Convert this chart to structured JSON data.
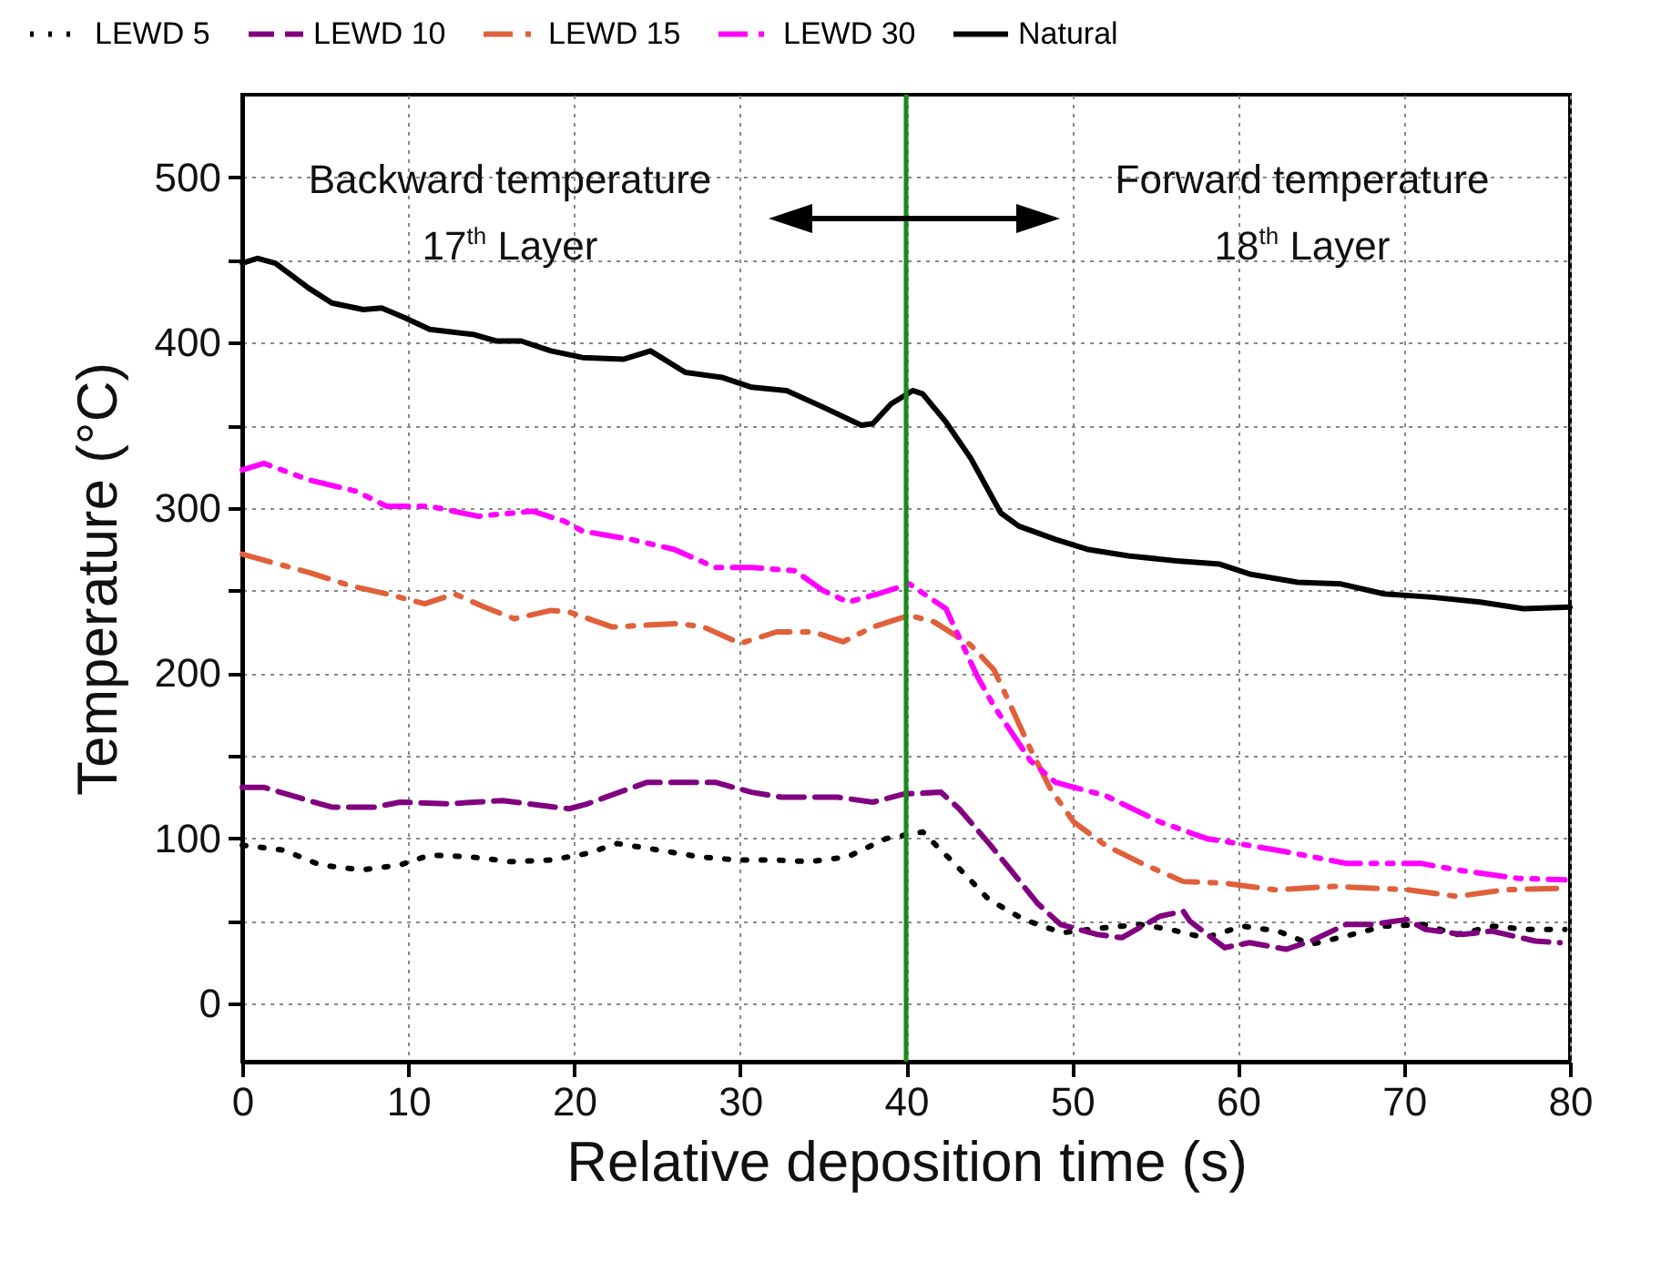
{
  "chart_data": {
    "type": "line",
    "xlabel": "Relative deposition time (s)",
    "ylabel": "Temperature (°C)",
    "annotations": [
      "Backward temperature",
      "17$^{th}$ Layer",
      "Forward temperature",
      "18$^{th}$ Layer"
    ],
    "xlim": [
      0,
      80
    ],
    "xticks": [
      0,
      10,
      20,
      30,
      40,
      50,
      60,
      70,
      80
    ],
    "ylim": [
      -35,
      550
    ],
    "yticks": [
      0,
      {
        "value": 50,
        "label": null
      },
      100,
      {
        "value": 150,
        "label": null
      },
      200,
      {
        "value": 250,
        "label": null
      },
      300,
      {
        "value": 350,
        "label": null
      },
      400,
      {
        "value": 450,
        "label": null
      },
      500
    ],
    "grid": true,
    "legend": "top",
    "ref_lines": [
      {
        "axis": "x",
        "value": 40,
        "color": "#1a8a1a"
      }
    ],
    "series": [
      {
        "name": "LEWD 5",
        "color": "#000000",
        "line_style": "dotted",
        "x": [
          0,
          2.5,
          4.7,
          7.2,
          9.5,
          11.3,
          13.7,
          16.2,
          18.6,
          20.8,
          22.6,
          25.1,
          27.5,
          29.8,
          32.2,
          34.2,
          36.5,
          38.8,
          41,
          43,
          45,
          47.1,
          49.4,
          51.9,
          54.1,
          55.9,
          58,
          60.3,
          62.4,
          64.4,
          66.5,
          68.8,
          71.2,
          73.2,
          75.4,
          77.3,
          79.7
        ],
        "values": [
          96,
          93,
          84,
          81,
          84,
          90,
          89,
          86,
          87,
          91,
          97,
          93,
          89,
          87,
          87,
          86,
          89,
          100,
          104,
          84,
          63,
          51,
          43,
          46,
          48,
          45,
          40,
          47,
          44,
          36,
          41,
          47,
          48,
          42,
          47,
          45,
          45
        ]
      },
      {
        "name": "LEWD 10",
        "color": "#800080",
        "line_style": "dashed",
        "x": [
          0,
          1.3,
          4,
          5.4,
          8,
          9.5,
          12.4,
          15.7,
          17.2,
          19.7,
          20.8,
          23,
          24.4,
          27,
          28.5,
          30.7,
          32.5,
          34.4,
          35.9,
          38,
          39.9,
          42.1,
          43.2,
          45,
          46.3,
          47.9,
          49.3,
          51.5,
          53,
          55.3,
          56.7,
          57.1,
          59.2,
          60.7,
          62.9,
          64.4,
          66.5,
          68,
          70.2,
          71.3,
          73.5,
          75.3,
          77.9,
          79.4
        ],
        "values": [
          131,
          131,
          123,
          119,
          119,
          122,
          121,
          123,
          121,
          118,
          121,
          129,
          134,
          134,
          134,
          128,
          125,
          125,
          125,
          122,
          127,
          128,
          118,
          97,
          81,
          61,
          48,
          42,
          40,
          53,
          56,
          50,
          34,
          37,
          33,
          38,
          48,
          48,
          51,
          45,
          42,
          44,
          38,
          37
        ]
      },
      {
        "name": "LEWD 15",
        "color": "#e0603a",
        "line_style": "dashdot",
        "x": [
          0,
          2.2,
          4,
          6.5,
          8.7,
          11,
          12.8,
          14.6,
          16.4,
          18.6,
          19.7,
          22.3,
          24.2,
          26.3,
          27.8,
          30,
          32.2,
          34.4,
          36.2,
          38,
          40.2,
          41.7,
          43.9,
          45.3,
          46,
          47.5,
          48.7,
          50.1,
          52,
          54.2,
          56.7,
          59.2,
          62.2,
          65.8,
          68.1,
          70.2,
          73.2,
          76.1,
          79.7
        ],
        "values": [
          272,
          266,
          261,
          253,
          248,
          242,
          248,
          240,
          233,
          238,
          237,
          228,
          229,
          230,
          228,
          218,
          225,
          225,
          219,
          228,
          235,
          231,
          217,
          202,
          187,
          154,
          130,
          110,
          96,
          85,
          74,
          73,
          69,
          71,
          70,
          69,
          65,
          69,
          70
        ]
      },
      {
        "name": "LEWD 30",
        "color": "#ff00ff",
        "line_style": "dashdotdot",
        "x": [
          0,
          1.3,
          4,
          6.9,
          8.7,
          11.3,
          14.2,
          17.5,
          19.4,
          20.5,
          23.4,
          26,
          28.5,
          30.7,
          33.3,
          35,
          36.5,
          38.3,
          40.2,
          42.4,
          44.3,
          45.3,
          47.5,
          49,
          50.1,
          52,
          55.3,
          58.1,
          60,
          62.9,
          66.5,
          68.4,
          71,
          73.2,
          76.8,
          79.7
        ],
        "values": [
          323,
          327,
          317,
          310,
          301,
          301,
          295,
          298,
          292,
          286,
          281,
          275,
          264,
          264,
          262,
          250,
          243,
          248,
          254,
          239,
          198,
          180,
          147,
          134,
          131,
          126,
          110,
          100,
          97,
          92,
          85,
          85,
          85,
          81,
          76,
          75
        ]
      },
      {
        "name": "Natural",
        "color": "#000000",
        "line_style": "solid",
        "x": [
          0,
          0.9,
          2,
          4,
          5.4,
          7.3,
          8.4,
          9.8,
          11.3,
          13.9,
          15.3,
          16.8,
          18.6,
          20.5,
          23,
          24.6,
          26.7,
          28.9,
          30.7,
          32.8,
          35,
          37.3,
          38,
          39.1,
          40.4,
          41,
          42.4,
          43.9,
          45.7,
          46.8,
          49,
          50.9,
          53.4,
          56.3,
          58.9,
          60.7,
          63.6,
          66.2,
          68.8,
          71.7,
          74.6,
          77.2,
          80
        ],
        "values": [
          448,
          451,
          448,
          433,
          424,
          420,
          421,
          415,
          408,
          405,
          401,
          401,
          395,
          391,
          390,
          395,
          382,
          379,
          373,
          371,
          361,
          350,
          351,
          363,
          371,
          369,
          352,
          330,
          297,
          289,
          281,
          275,
          271,
          268,
          266,
          260,
          255,
          254,
          248,
          246,
          243,
          239,
          240
        ]
      }
    ]
  }
}
